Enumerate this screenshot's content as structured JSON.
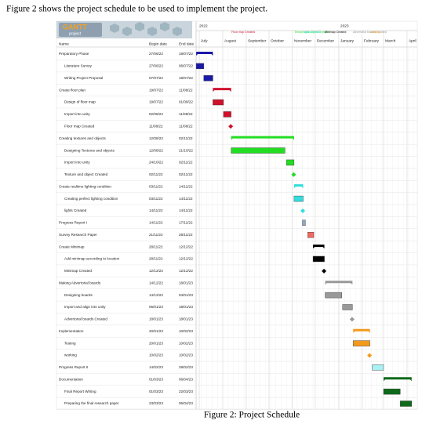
{
  "intro": "Figure 2 shows the project schedule to be used to implement the project.",
  "caption": "Figure 2: Project Schedule",
  "logo": {
    "title": "GANTT",
    "subtitle": "project"
  },
  "columns": {
    "name": "Name",
    "begin": "Begin date",
    "end": "End date"
  },
  "years": [
    "2022",
    "2023"
  ],
  "months": [
    "July",
    "August",
    "September",
    "October",
    "November",
    "December",
    "January",
    "February",
    "March",
    "April"
  ],
  "tasks": [
    {
      "name": "Preparatory Phase",
      "begin": "27/06/22",
      "end": "18/07/22",
      "kind": "group",
      "color": "#1a1aa8"
    },
    {
      "name": "Literature Survey",
      "begin": "27/06/22",
      "end": "06/07/22",
      "kind": "task",
      "color": "#1a1aa8"
    },
    {
      "name": "Writing Project Proposal",
      "begin": "07/07/22",
      "end": "18/07/22",
      "kind": "task",
      "color": "#1a1aa8"
    },
    {
      "name": "Create floor plan",
      "begin": "19/07/22",
      "end": "11/08/22",
      "kind": "group",
      "color": "#d0102c"
    },
    {
      "name": "Design of floor map",
      "begin": "19/07/22",
      "end": "01/08/22",
      "kind": "task",
      "color": "#d0102c"
    },
    {
      "name": "Import into unity",
      "begin": "02/08/22",
      "end": "11/08/22",
      "kind": "task",
      "color": "#d0102c"
    },
    {
      "name": "Floor map Created",
      "begin": "11/08/22",
      "end": "11/08/22",
      "kind": "milestone",
      "color": "#d0102c"
    },
    {
      "name": "Creating textures and objects",
      "begin": "12/08/22",
      "end": "02/11/22",
      "kind": "group",
      "color": "#22dd22"
    },
    {
      "name": "Designing Textures and objects",
      "begin": "12/08/22",
      "end": "21/10/22",
      "kind": "task",
      "color": "#22dd22"
    },
    {
      "name": "Import into unity",
      "begin": "24/10/22",
      "end": "02/11/22",
      "kind": "task",
      "color": "#22dd22"
    },
    {
      "name": "Texture and object Created",
      "begin": "02/11/22",
      "end": "02/11/22",
      "kind": "milestone",
      "color": "#22dd22"
    },
    {
      "name": "Create realtime lighting condition",
      "begin": "03/11/22",
      "end": "14/11/22",
      "kind": "group",
      "color": "#33dddd"
    },
    {
      "name": "Creating perfect lighting condition",
      "begin": "03/11/22",
      "end": "14/11/22",
      "kind": "task",
      "color": "#33dddd"
    },
    {
      "name": "lights Created",
      "begin": "14/11/22",
      "end": "14/11/22",
      "kind": "milestone",
      "color": "#33dddd"
    },
    {
      "name": "Progress Report I",
      "begin": "14/11/22",
      "end": "17/11/22",
      "kind": "task",
      "color": "#8fa8c8"
    },
    {
      "name": "Survey Research Paper",
      "begin": "21/11/22",
      "end": "28/11/22",
      "kind": "task",
      "color": "#f06a60"
    },
    {
      "name": "Create Minimap",
      "begin": "28/11/22",
      "end": "12/12/22",
      "kind": "group",
      "color": "#000000"
    },
    {
      "name": "Add minimap according to location",
      "begin": "28/11/22",
      "end": "12/12/22",
      "kind": "task",
      "color": "#000000"
    },
    {
      "name": "Minimap Created",
      "begin": "12/12/22",
      "end": "12/12/22",
      "kind": "milestone",
      "color": "#000000"
    },
    {
      "name": "Making Advertorial boards",
      "begin": "14/12/22",
      "end": "18/01/23",
      "kind": "group",
      "color": "#999999"
    },
    {
      "name": "Designing boards",
      "begin": "14/12/22",
      "end": "04/01/23",
      "kind": "task",
      "color": "#999999"
    },
    {
      "name": "Import and align into unity",
      "begin": "06/01/23",
      "end": "18/01/23",
      "kind": "task",
      "color": "#999999"
    },
    {
      "name": "Advertorial boards Created",
      "begin": "18/01/23",
      "end": "18/01/23",
      "kind": "milestone",
      "color": "#999999"
    },
    {
      "name": "Implementation",
      "begin": "20/01/23",
      "end": "10/02/23",
      "kind": "group",
      "color": "#f49a1a"
    },
    {
      "name": "Testing",
      "begin": "20/01/23",
      "end": "10/02/23",
      "kind": "task",
      "color": "#f49a1a"
    },
    {
      "name": "working",
      "begin": "10/02/23",
      "end": "10/02/23",
      "kind": "milestone",
      "color": "#f49a1a"
    },
    {
      "name": "Progress Report II",
      "begin": "14/02/23",
      "end": "28/02/23",
      "kind": "task",
      "color": "#aaf0f4"
    },
    {
      "name": "Documentation",
      "begin": "01/03/23",
      "end": "06/04/23",
      "kind": "group",
      "color": "#0e6a1a"
    },
    {
      "name": "Final Report Writing",
      "begin": "01/03/23",
      "end": "22/03/23",
      "kind": "task",
      "color": "#0e6a1a"
    },
    {
      "name": "Preparing  the final research paper",
      "begin": "23/03/23",
      "end": "06/04/23",
      "kind": "task",
      "color": "#0e6a1a"
    }
  ]
}
